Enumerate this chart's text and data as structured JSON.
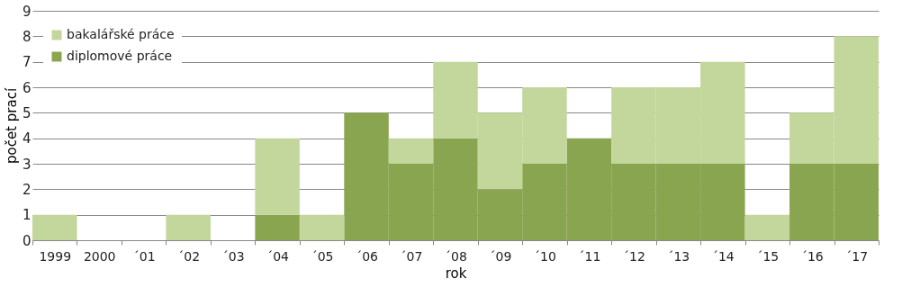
{
  "chart_data": {
    "type": "bar",
    "stacked": true,
    "xlabel": "rok",
    "ylabel": "počet prací",
    "categories": [
      "1999",
      "2000",
      "´01",
      "´02",
      "´03",
      "´04",
      "´05",
      "´06",
      "´07",
      "´08",
      "´09",
      "´10",
      "´11",
      "´12",
      "´13",
      "´14",
      "´15",
      "´16",
      "´17"
    ],
    "series": [
      {
        "name": "diplomové práce",
        "color": "#8aa54f",
        "values": [
          0,
          0,
          0,
          0,
          0,
          1,
          0,
          5,
          3,
          4,
          2,
          3,
          4,
          3,
          3,
          3,
          0,
          3,
          3
        ]
      },
      {
        "name": "bakalářské práce",
        "color": "#c3d69b",
        "values": [
          1,
          0,
          0,
          1,
          0,
          3,
          1,
          0,
          1,
          3,
          3,
          3,
          0,
          3,
          3,
          4,
          1,
          2,
          5
        ]
      }
    ],
    "ylim": [
      0,
      9
    ],
    "yticks": [
      0,
      1,
      2,
      3,
      4,
      5,
      6,
      7,
      8,
      9
    ],
    "grid": "y",
    "legend": "top left"
  }
}
